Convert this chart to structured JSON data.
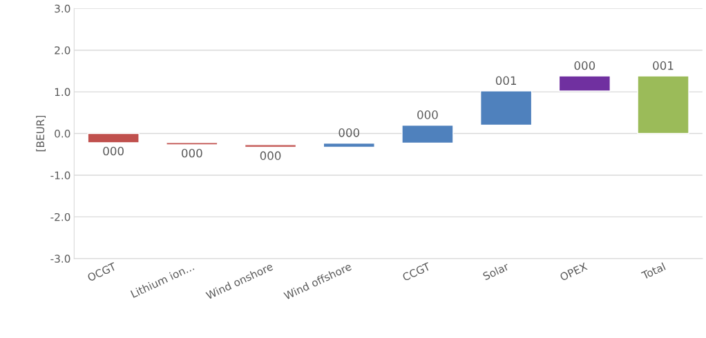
{
  "chart_data": {
    "type": "bar",
    "ylabel": "[BEUR]",
    "categories": [
      "OCGT",
      "Lithium ion...",
      "Wind onshore",
      "Wind offshore",
      "CCGT",
      "Solar",
      "OPEX",
      "Total"
    ],
    "values": [
      -0.22,
      -0.05,
      -0.06,
      0.1,
      0.43,
      0.82,
      0.36,
      1.38
    ],
    "base": [
      0,
      -0.22,
      -0.27,
      -0.33,
      -0.23,
      0.2,
      1.02,
      0
    ],
    "colors": [
      "#c0504d",
      "#c0504d",
      "#c0504d",
      "#4f81bd",
      "#4f81bd",
      "#4f81bd",
      "#7030a0",
      "#9bbb59"
    ],
    "value_labels": [
      "000",
      "000",
      "000",
      "000",
      "000",
      "001",
      "000",
      "001"
    ],
    "ylim": [
      -3.0,
      3.0
    ],
    "yticks": [
      {
        "value": -3,
        "label": "-3.0"
      },
      {
        "value": -2,
        "label": "-2.0"
      },
      {
        "value": -1,
        "label": "-1.0"
      },
      {
        "value": 0,
        "label": "0.0"
      },
      {
        "value": 1,
        "label": "1.0"
      },
      {
        "value": 2,
        "label": "2.0"
      },
      {
        "value": 3,
        "label": "3.0"
      }
    ],
    "grid": "y",
    "legend": false
  }
}
